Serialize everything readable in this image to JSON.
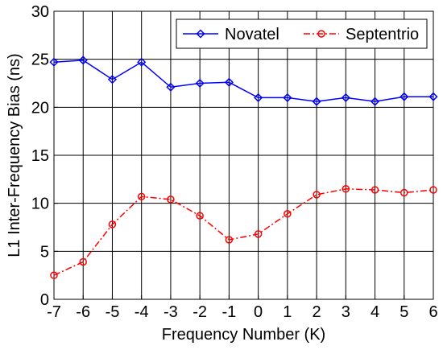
{
  "chart_data": {
    "type": "line",
    "xlabel": "Frequency Number (K)",
    "ylabel": "L1 Inter-Frequency Bias (ns)",
    "xlim": [
      -7,
      6
    ],
    "ylim": [
      0,
      30
    ],
    "grid": true,
    "legend_position": "top-right",
    "x": [
      -7,
      -6,
      -5,
      -4,
      -3,
      -2,
      -1,
      0,
      1,
      2,
      3,
      4,
      5,
      6
    ],
    "x_ticks": [
      "-7",
      "-6",
      "-5",
      "-4",
      "-3",
      "-2",
      "-1",
      "0",
      "1",
      "2",
      "3",
      "4",
      "5",
      "6"
    ],
    "y_ticks": [
      "0",
      "5",
      "10",
      "15",
      "20",
      "25",
      "30"
    ],
    "series": [
      {
        "name": "Novatel",
        "color": "#0000ff",
        "line_style": "solid",
        "marker": "diamond",
        "values": [
          24.7,
          24.9,
          22.9,
          24.7,
          22.1,
          22.5,
          22.6,
          21.0,
          21.0,
          20.6,
          21.0,
          20.6,
          21.1,
          21.1
        ]
      },
      {
        "name": "Septentrio",
        "color": "#ff0000",
        "line_style": "dashdot",
        "marker": "circle",
        "values": [
          2.5,
          3.9,
          7.8,
          10.7,
          10.4,
          8.7,
          6.2,
          6.8,
          8.9,
          10.9,
          11.5,
          11.4,
          11.1,
          11.4
        ]
      }
    ]
  }
}
